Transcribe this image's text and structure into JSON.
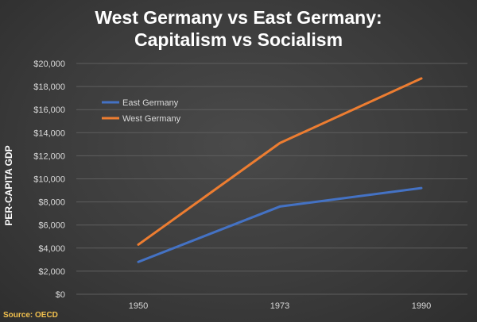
{
  "chart_data": {
    "type": "line",
    "title_line1": "West Germany vs East Germany:",
    "title_line2": "Capitalism vs Socialism",
    "ylabel": "PER-CAPITA GDP",
    "xlabel": "",
    "categories": [
      "1950",
      "1973",
      "1990"
    ],
    "ylim": [
      0,
      20000
    ],
    "yticks": [
      "$0",
      "$2,000",
      "$4,000",
      "$6,000",
      "$8,000",
      "$10,000",
      "$12,000",
      "$14,000",
      "$16,000",
      "$18,000",
      "$20,000"
    ],
    "grid": true,
    "legend_position": "top-left",
    "series": [
      {
        "name": "East Germany",
        "color": "#4472c4",
        "values": [
          2800,
          7600,
          9200
        ]
      },
      {
        "name": "West Germany",
        "color": "#ed7d31",
        "values": [
          4300,
          13100,
          18700
        ]
      }
    ],
    "source": "Source: OECD"
  }
}
